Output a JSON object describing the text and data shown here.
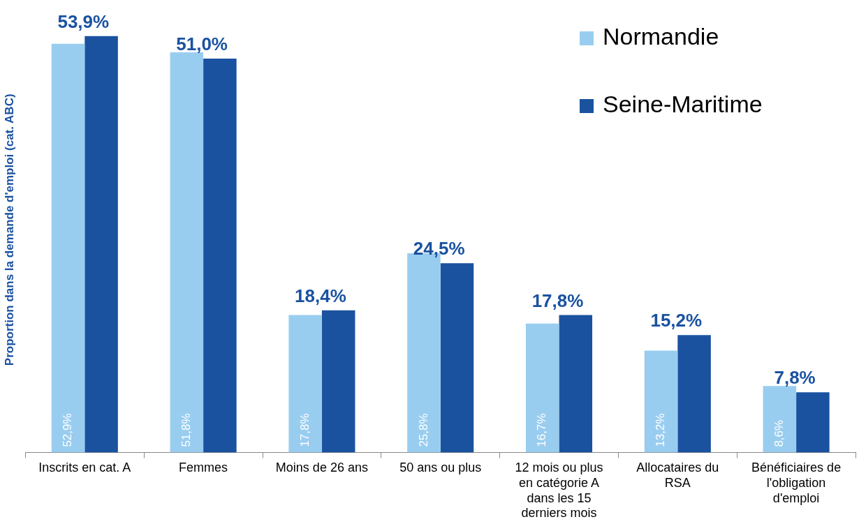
{
  "chart_data": {
    "type": "bar",
    "ylabel": "Proportion dans la demande d'emploi (cat. ABC)",
    "categories": [
      "Inscrits en cat. A",
      "Femmes",
      "Moins de 26 ans",
      "50 ans ou plus",
      "12 mois ou plus en catégorie A dans les 15 derniers mois",
      "Allocataires du RSA",
      "Bénéficiaires de l'obligation d'emploi"
    ],
    "series": [
      {
        "name": "Normandie",
        "color": "#99cdf0",
        "values": [
          52.9,
          51.8,
          17.8,
          25.8,
          16.7,
          13.2,
          8.6
        ],
        "value_labels": [
          "52,9%",
          "51,8%",
          "17,8%",
          "25,8%",
          "16,7%",
          "13,2%",
          "8,6%"
        ]
      },
      {
        "name": "Seine-Maritime",
        "color": "#1a52a0",
        "values": [
          53.9,
          51.0,
          18.4,
          24.5,
          17.8,
          15.2,
          7.8
        ],
        "value_labels": [
          "53,9%",
          "51,0%",
          "18,4%",
          "24,5%",
          "17,8%",
          "15,2%",
          "7,8%"
        ]
      }
    ],
    "legend": "top right",
    "grid": false,
    "tick_labels": "x"
  }
}
